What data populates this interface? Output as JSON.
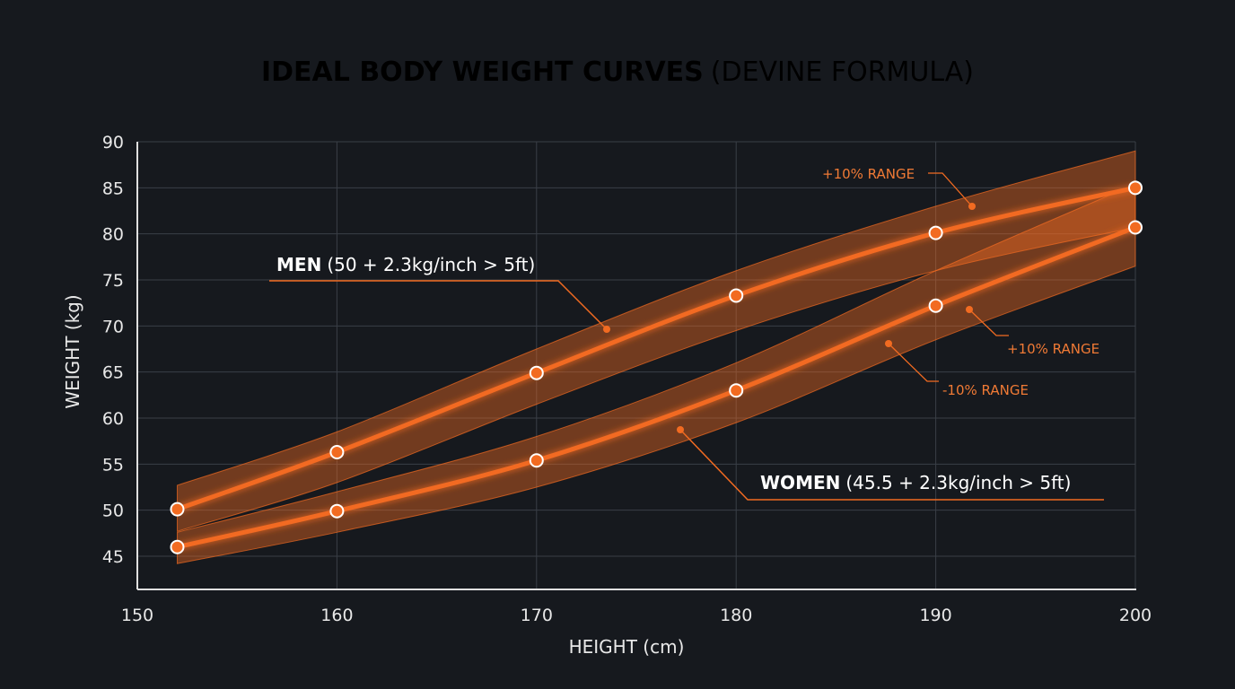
{
  "chart_data": {
    "type": "line",
    "title": "IDEAL BODY WEIGHT CURVES",
    "subtitle": "(DEVINE FORMULA)",
    "xlabel": "HEIGHT (cm)",
    "ylabel": "WEIGHT (kg)",
    "xlim": [
      150,
      200
    ],
    "ylim": [
      41.5,
      90
    ],
    "xticks": [
      150,
      160,
      170,
      180,
      190,
      200
    ],
    "yticks": [
      45,
      50,
      55,
      60,
      65,
      70,
      75,
      80,
      85,
      90
    ],
    "grid": true,
    "x": [
      152,
      160,
      170,
      180,
      190,
      200
    ],
    "series": [
      {
        "name": "MEN",
        "formula": "(50 + 2.3kg/inch > 5ft)",
        "values": [
          50.1,
          56.3,
          64.9,
          73.3,
          80.1,
          85.0
        ],
        "band_upper": [
          52.7,
          58.5,
          67.5,
          76.0,
          83.0,
          89.0
        ],
        "band_lower": [
          47.7,
          53.0,
          61.5,
          69.5,
          76.0,
          80.7
        ]
      },
      {
        "name": "WOMEN",
        "formula": "(45.5 + 2.3kg/inch > 5ft)",
        "values": [
          46.0,
          49.9,
          55.4,
          63.0,
          72.2,
          80.7
        ],
        "band_upper": [
          47.6,
          52.0,
          58.0,
          66.0,
          76.0,
          85.4
        ],
        "band_lower": [
          44.2,
          47.6,
          52.5,
          59.5,
          68.5,
          76.5
        ]
      }
    ],
    "annotations": [
      "+10% RANGE",
      "+10% RANGE",
      "-10% RANGE"
    ],
    "colors": {
      "background": "#16191e",
      "line": "#f26b21",
      "band": "#f26b21",
      "annotation": "#f07a35",
      "grid": "#3a3f47"
    }
  }
}
